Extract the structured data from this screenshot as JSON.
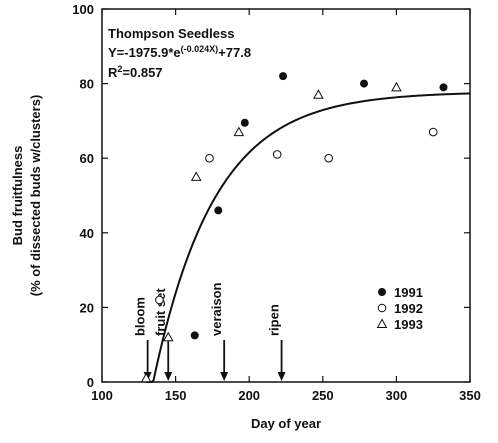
{
  "chart_data": {
    "type": "scatter",
    "xlabel": "Day of year",
    "ylabel_line1": "Bud fruitfulness",
    "ylabel_line2": "(% of dissected buds w/clusters)",
    "xlim": [
      100,
      350
    ],
    "ylim": [
      0,
      100
    ],
    "xticks": [
      100,
      150,
      200,
      250,
      300,
      350
    ],
    "yticks": [
      0,
      20,
      40,
      60,
      80,
      100
    ],
    "grid": false,
    "legend_position": "bottom-right",
    "annotation": {
      "title": "Thompson Seedless",
      "equation_prefix": "Y=-1975.9*e",
      "equation_exponent": "(-0.024X)",
      "equation_suffix": "+77.8",
      "r2_prefix": "R",
      "r2_sup": "2",
      "r2_value": "=0.857"
    },
    "fit": {
      "a": -1975.9,
      "b": -0.024,
      "c": 77.8,
      "x_start": 130,
      "x_end": 350
    },
    "series": [
      {
        "name": "1991",
        "marker": "filled-circle",
        "points": [
          [
            163,
            12.5
          ],
          [
            179,
            46
          ],
          [
            197,
            69.5
          ],
          [
            223,
            82
          ],
          [
            278,
            80
          ],
          [
            332,
            79
          ]
        ]
      },
      {
        "name": "1992",
        "marker": "open-circle",
        "points": [
          [
            139,
            22
          ],
          [
            173,
            60
          ],
          [
            219,
            61
          ],
          [
            254,
            60
          ],
          [
            325,
            67
          ]
        ]
      },
      {
        "name": "1993",
        "marker": "open-triangle",
        "points": [
          [
            130,
            1
          ],
          [
            145,
            12
          ],
          [
            164,
            55
          ],
          [
            193,
            67
          ],
          [
            247,
            77
          ],
          [
            300,
            79
          ]
        ]
      }
    ],
    "events": [
      {
        "label": "bloom",
        "x": 131
      },
      {
        "label": "fruit set",
        "x": 145
      },
      {
        "label": "veraison",
        "x": 183
      },
      {
        "label": "ripen",
        "x": 222
      }
    ]
  }
}
